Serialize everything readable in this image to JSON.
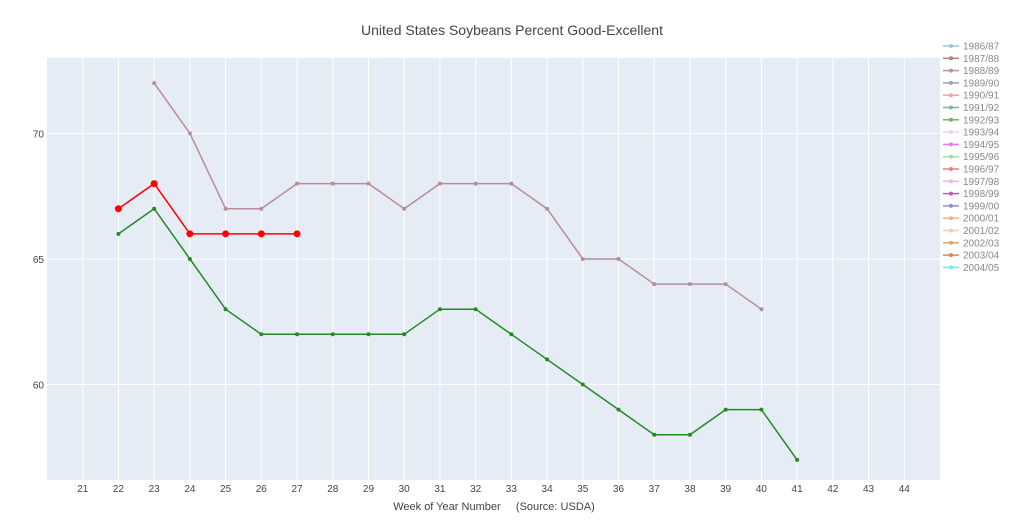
{
  "chart_data": {
    "type": "line",
    "title": "United States Soybeans Percent Good-Excellent",
    "xlabel": "Week of Year Number     (Source: USDA)",
    "ylabel": "",
    "xlim": [
      20,
      45
    ],
    "ylim": [
      56.2,
      73
    ],
    "x_ticks": [
      21,
      22,
      23,
      24,
      25,
      26,
      27,
      28,
      29,
      30,
      31,
      32,
      33,
      34,
      35,
      36,
      37,
      38,
      39,
      40,
      41,
      42,
      43,
      44
    ],
    "y_ticks": [
      60,
      65,
      70
    ],
    "grid": true,
    "legend_placement": "right",
    "plot_background": "#e5ecf6",
    "legend": [
      {
        "name": "1986/87",
        "color": "#9ec5da"
      },
      {
        "name": "1987/88",
        "color": "#b5807a"
      },
      {
        "name": "1988/89",
        "color": "#b38fb5"
      },
      {
        "name": "1989/90",
        "color": "#9f9fb8"
      },
      {
        "name": "1990/91",
        "color": "#f2a0b0"
      },
      {
        "name": "1991/92",
        "color": "#7fb0a8"
      },
      {
        "name": "1992/93",
        "color": "#78b060"
      },
      {
        "name": "1993/94",
        "color": "#e8d8e8"
      },
      {
        "name": "1994/95",
        "color": "#e878e8"
      },
      {
        "name": "1995/96",
        "color": "#a8d8a8"
      },
      {
        "name": "1996/97",
        "color": "#e88080"
      },
      {
        "name": "1997/98",
        "color": "#e8b8e8"
      },
      {
        "name": "1998/99",
        "color": "#d050c8"
      },
      {
        "name": "1999/00",
        "color": "#9090d0"
      },
      {
        "name": "2000/01",
        "color": "#e8b888"
      },
      {
        "name": "2001/02",
        "color": "#f0d0b0"
      },
      {
        "name": "2002/03",
        "color": "#d8a870"
      },
      {
        "name": "2003/04",
        "color": "#d88850"
      },
      {
        "name": "2004/05",
        "color": "#60f0f0"
      }
    ],
    "series": [
      {
        "color": "#b88c9c",
        "marker_size": 2,
        "line_width": 1.5,
        "x": [
          23,
          24,
          25,
          26,
          27,
          28,
          29,
          30,
          31,
          32,
          33,
          34,
          35,
          36,
          37,
          38,
          39,
          40
        ],
        "y": [
          72,
          70,
          67,
          67,
          68,
          68,
          68,
          67,
          68,
          68,
          68,
          67,
          65,
          65,
          64,
          64,
          64,
          63
        ]
      },
      {
        "color": "#228b22",
        "marker_size": 2,
        "line_width": 1.5,
        "x": [
          22,
          23,
          24,
          25,
          26,
          27,
          28,
          29,
          30,
          31,
          32,
          33,
          34,
          35,
          36,
          37,
          38,
          39,
          40,
          41
        ],
        "y": [
          66,
          67,
          65,
          63,
          62,
          62,
          62,
          62,
          62,
          63,
          63,
          62,
          61,
          60,
          59,
          58,
          58,
          59,
          59,
          57
        ]
      },
      {
        "color": "#ff0000",
        "marker_size": 3.5,
        "line_width": 1.5,
        "x": [
          22,
          23,
          24,
          25,
          26,
          27
        ],
        "y": [
          67,
          68,
          66,
          66,
          66,
          66
        ]
      }
    ]
  }
}
